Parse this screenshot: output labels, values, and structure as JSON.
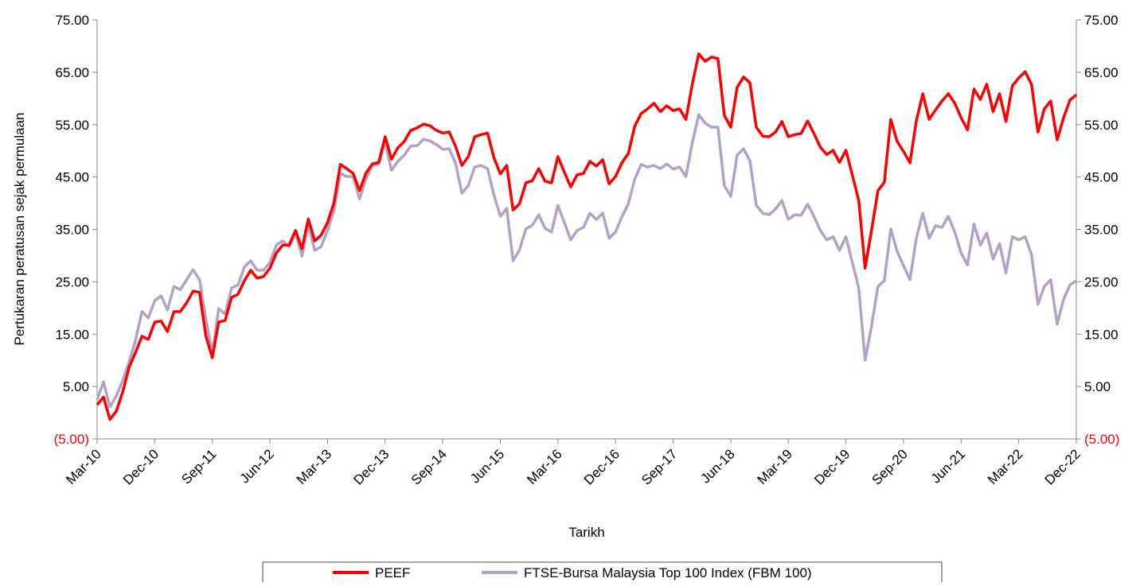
{
  "chart_data": {
    "type": "line",
    "y_label": "Pertukaran peratusan sejak permulaan",
    "x_label": "Tarikh",
    "categories": [
      "Mar-10",
      null,
      null,
      null,
      null,
      null,
      null,
      null,
      null,
      "Dec-10",
      null,
      null,
      null,
      null,
      null,
      null,
      null,
      null,
      "Sep-11",
      null,
      null,
      null,
      null,
      null,
      null,
      null,
      null,
      "Jun-12",
      null,
      null,
      null,
      null,
      null,
      null,
      null,
      null,
      "Mar-13",
      null,
      null,
      null,
      null,
      null,
      null,
      null,
      null,
      "Dec-13",
      null,
      null,
      null,
      null,
      null,
      null,
      null,
      null,
      "Sep-14",
      null,
      null,
      null,
      null,
      null,
      null,
      null,
      null,
      "Jun-15",
      null,
      null,
      null,
      null,
      null,
      null,
      null,
      null,
      "Mar-16",
      null,
      null,
      null,
      null,
      null,
      null,
      null,
      null,
      "Dec-16",
      null,
      null,
      null,
      null,
      null,
      null,
      null,
      null,
      "Sep-17",
      null,
      null,
      null,
      null,
      null,
      null,
      null,
      null,
      "Jun-18",
      null,
      null,
      null,
      null,
      null,
      null,
      null,
      null,
      "Mar-19",
      null,
      null,
      null,
      null,
      null,
      null,
      null,
      null,
      "Dec-19",
      null,
      null,
      null,
      null,
      null,
      null,
      null,
      null,
      "Sep-20",
      null,
      null,
      null,
      null,
      null,
      null,
      null,
      null,
      "Jun-21",
      null,
      null,
      null,
      null,
      null,
      null,
      null,
      null,
      "Mar-22",
      null,
      null,
      null,
      null,
      null,
      null,
      null,
      null,
      "Dec-22"
    ],
    "series": [
      {
        "name": "PEEF",
        "color": "#ff0000",
        "values": [
          1.5,
          3,
          -1.3,
          0.3,
          4,
          8.7,
          11.5,
          14.6,
          14,
          17.3,
          17.5,
          15.5,
          19.3,
          19.3,
          21,
          23.2,
          23,
          14.6,
          10.5,
          17.3,
          17.6,
          22,
          22.6,
          25.2,
          27.2,
          25.7,
          26,
          27.6,
          30.5,
          32,
          32,
          34.8,
          31.3,
          37,
          32.8,
          33.9,
          36.3,
          40.1,
          47.4,
          46.6,
          45.7,
          42.4,
          45.7,
          47.5,
          47.8,
          52.7,
          48.4,
          50.6,
          51.8,
          53.9,
          54.4,
          55.1,
          54.8,
          53.9,
          53.4,
          53.6,
          50.9,
          47.2,
          48.9,
          52.7,
          53.1,
          53.4,
          48.7,
          45.6,
          47.2,
          38.7,
          39.9,
          43.9,
          44.3,
          46.6,
          44.2,
          43.9,
          48.9,
          45.9,
          43.1,
          45.4,
          45.7,
          48,
          47.1,
          48.3,
          43.7,
          45.1,
          47.7,
          49.5,
          54.7,
          57.1,
          58,
          59.1,
          57.5,
          58.6,
          57.7,
          58,
          56,
          62.7,
          68.5,
          67.1,
          67.9,
          67.6,
          56.8,
          54.5,
          62.1,
          64.1,
          63,
          54.5,
          52.8,
          52.7,
          53.6,
          55.6,
          52.7,
          53.1,
          53.3,
          55.7,
          53.3,
          50.7,
          49.3,
          50.1,
          47.8,
          50.1,
          45.4,
          40.5,
          27.6,
          34.8,
          42.4,
          44,
          56,
          51.8,
          49.9,
          47.7,
          55.7,
          60.9,
          56,
          57.8,
          59.5,
          60.9,
          59.1,
          56.3,
          54,
          61.8,
          59.8,
          62.7,
          57.5,
          60.9,
          55.6,
          62.4,
          63.9,
          65.1,
          62.7,
          53.6,
          58,
          59.5,
          52.1,
          56.3,
          59.7,
          60.7
        ]
      },
      {
        "name": "FTSE-Bursa Malaysia Top 100 Index (FBM 100)",
        "color": "#b3a2c7",
        "values": [
          2.5,
          5.9,
          1.1,
          3.2,
          6.2,
          9.7,
          13.8,
          19.3,
          18.1,
          21.4,
          22.3,
          19.6,
          24.1,
          23.5,
          25.4,
          27.3,
          25.4,
          17.8,
          11.2,
          19.9,
          18.8,
          23.8,
          24.4,
          27.8,
          29,
          27.2,
          27.2,
          28.7,
          32,
          32.8,
          31.7,
          34.5,
          29.9,
          36,
          31,
          31.7,
          34.8,
          38.6,
          45.7,
          45.1,
          45.1,
          40.8,
          44.6,
          47.2,
          47.5,
          51.5,
          46.3,
          48,
          49.2,
          50.9,
          51,
          52.2,
          51.9,
          51.2,
          50.3,
          50.4,
          47.7,
          41.9,
          43.4,
          46.9,
          47.2,
          46.6,
          41.6,
          37.5,
          39,
          29,
          31.1,
          35.1,
          35.8,
          37.8,
          35.2,
          34.5,
          39.6,
          36.3,
          33,
          34.8,
          35.4,
          38.1,
          36.9,
          38.1,
          33.3,
          34.5,
          37.4,
          39.9,
          44.6,
          47.4,
          46.9,
          47.2,
          46.6,
          47.5,
          46.5,
          46.9,
          45.1,
          51.5,
          56.9,
          55.3,
          54.5,
          54.5,
          43.4,
          41.3,
          49.2,
          50.4,
          48.1,
          39.6,
          38.1,
          37.8,
          38.9,
          40.5,
          36.9,
          37.8,
          37.7,
          39.8,
          37.5,
          34.8,
          33,
          33.6,
          31,
          33.6,
          28.7,
          23.8,
          10,
          16.5,
          24.1,
          25.2,
          35.1,
          30.8,
          28.1,
          25.4,
          33.3,
          38.1,
          33.3,
          35.7,
          35.4,
          37.5,
          34.5,
          30.5,
          28.2,
          36,
          32,
          34.3,
          29.3,
          32.3,
          26.7,
          33.6,
          33,
          33.6,
          30.2,
          20.7,
          24.1,
          25.4,
          16.9,
          21.6,
          24.4,
          25.2
        ]
      }
    ],
    "ylim": [
      -5,
      75
    ],
    "yticks": [
      {
        "value": -5,
        "label": "(5.00)"
      },
      {
        "value": 5,
        "label": "5.00"
      },
      {
        "value": 15,
        "label": "15.00"
      },
      {
        "value": 25,
        "label": "25.00"
      },
      {
        "value": 35,
        "label": "35.00"
      },
      {
        "value": 45,
        "label": "45.00"
      },
      {
        "value": 55,
        "label": "55.00"
      },
      {
        "value": 65,
        "label": "65.00"
      },
      {
        "value": 75,
        "label": "75.00"
      }
    ],
    "negative_tick_color": "#ff0000",
    "grid": false,
    "legend": "bottom"
  }
}
